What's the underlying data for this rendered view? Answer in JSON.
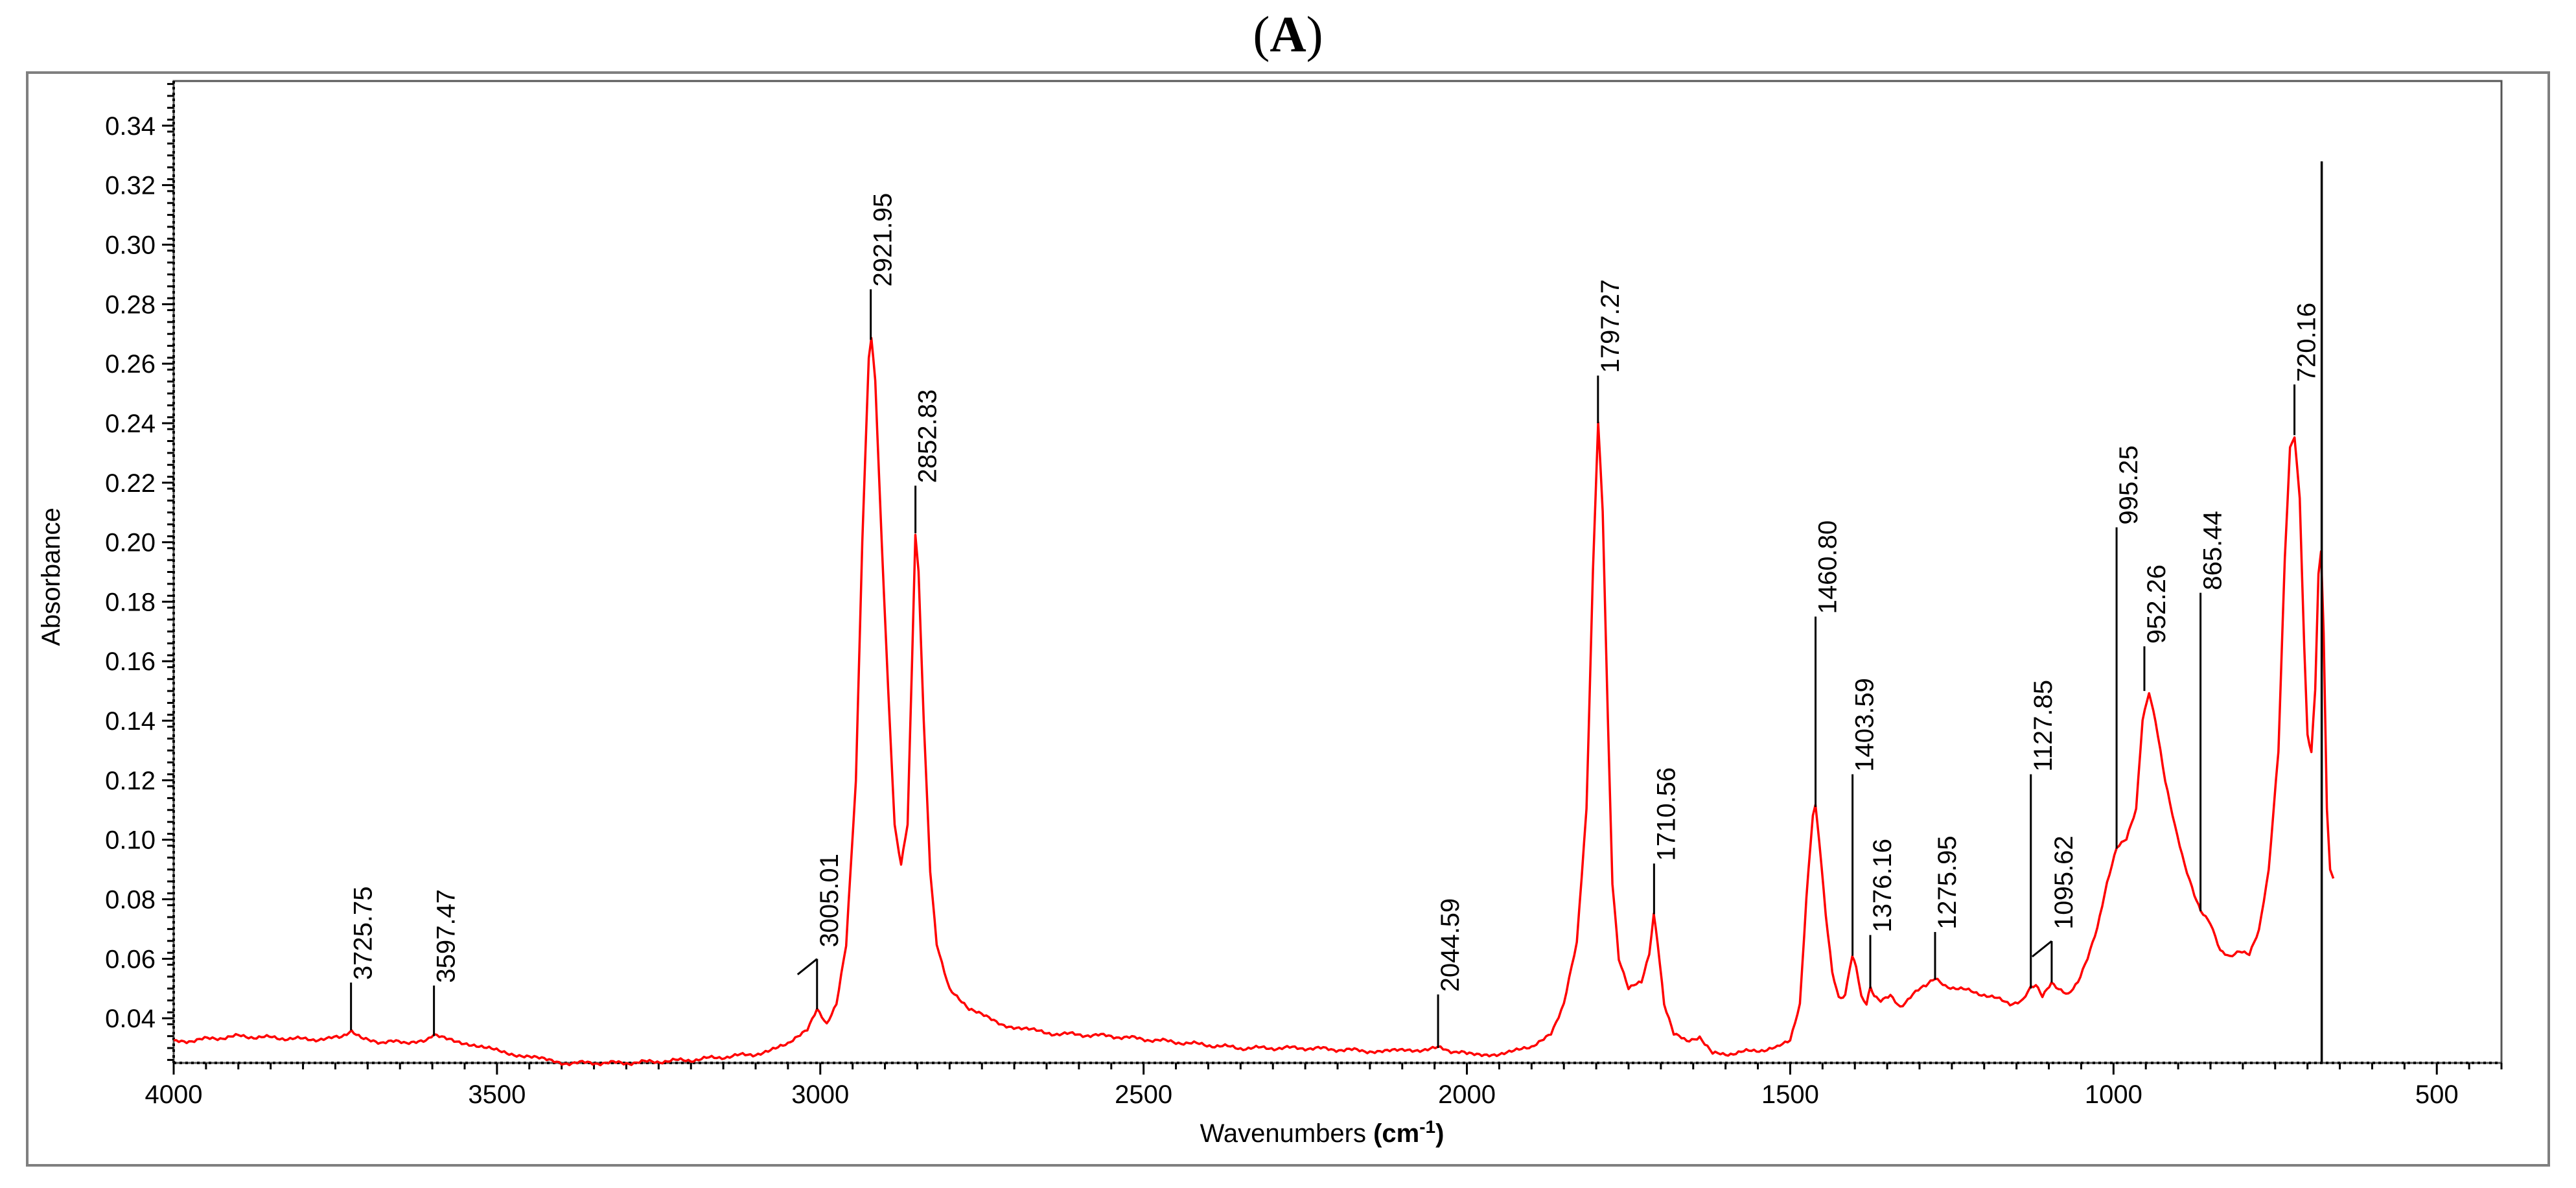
{
  "figure": {
    "panel_label": "A"
  },
  "chart_data": {
    "type": "line",
    "title": "(A)",
    "xlabel": "Wavenumbers (cm⁻¹)",
    "xlabel_parts": {
      "text": "Wavenumbers ",
      "unit_base": "cm",
      "unit_exp": "-1"
    },
    "ylabel": "Absorbance",
    "xlim": [
      4000,
      400
    ],
    "ylim": [
      0.025,
      0.355
    ],
    "x_ticks": [
      4000,
      3500,
      3000,
      2500,
      2000,
      1500,
      1000,
      500
    ],
    "y_ticks": [
      0.04,
      0.06,
      0.08,
      0.1,
      0.12,
      0.14,
      0.16,
      0.18,
      0.2,
      0.22,
      0.24,
      0.26,
      0.28,
      0.3,
      0.32,
      0.34
    ],
    "y_tick_labels": [
      "0.04",
      "0.06",
      "0.08",
      "0.10",
      "0.12",
      "0.14",
      "0.16",
      "0.18",
      "0.20",
      "0.22",
      "0.24",
      "0.26",
      "0.28",
      "0.30",
      "0.32",
      "0.34"
    ],
    "line_color": "#ff0000",
    "series": [
      {
        "name": "Absorbance spectrum",
        "points": [
          [
            4000,
            0.032
          ],
          [
            3900,
            0.034
          ],
          [
            3800,
            0.033
          ],
          [
            3760,
            0.033
          ],
          [
            3740,
            0.034
          ],
          [
            3725,
            0.036
          ],
          [
            3710,
            0.034
          ],
          [
            3680,
            0.032
          ],
          [
            3640,
            0.032
          ],
          [
            3610,
            0.033
          ],
          [
            3597,
            0.034
          ],
          [
            3570,
            0.033
          ],
          [
            3520,
            0.03
          ],
          [
            3450,
            0.027
          ],
          [
            3400,
            0.025
          ],
          [
            3300,
            0.025
          ],
          [
            3200,
            0.026
          ],
          [
            3100,
            0.028
          ],
          [
            3050,
            0.031
          ],
          [
            3020,
            0.036
          ],
          [
            3005,
            0.043
          ],
          [
            2990,
            0.038
          ],
          [
            2975,
            0.045
          ],
          [
            2960,
            0.065
          ],
          [
            2945,
            0.12
          ],
          [
            2935,
            0.2
          ],
          [
            2925,
            0.262
          ],
          [
            2921,
            0.268
          ],
          [
            2915,
            0.255
          ],
          [
            2905,
            0.2
          ],
          [
            2895,
            0.15
          ],
          [
            2885,
            0.105
          ],
          [
            2875,
            0.092
          ],
          [
            2865,
            0.105
          ],
          [
            2858,
            0.16
          ],
          [
            2853,
            0.203
          ],
          [
            2848,
            0.19
          ],
          [
            2840,
            0.14
          ],
          [
            2830,
            0.09
          ],
          [
            2820,
            0.065
          ],
          [
            2800,
            0.05
          ],
          [
            2770,
            0.043
          ],
          [
            2720,
            0.038
          ],
          [
            2650,
            0.035
          ],
          [
            2550,
            0.034
          ],
          [
            2450,
            0.032
          ],
          [
            2350,
            0.03
          ],
          [
            2250,
            0.03
          ],
          [
            2150,
            0.029
          ],
          [
            2100,
            0.029
          ],
          [
            2045,
            0.03
          ],
          [
            2000,
            0.028
          ],
          [
            1950,
            0.028
          ],
          [
            1900,
            0.03
          ],
          [
            1870,
            0.035
          ],
          [
            1850,
            0.045
          ],
          [
            1830,
            0.065
          ],
          [
            1815,
            0.11
          ],
          [
            1805,
            0.19
          ],
          [
            1797,
            0.24
          ],
          [
            1790,
            0.21
          ],
          [
            1782,
            0.14
          ],
          [
            1775,
            0.085
          ],
          [
            1765,
            0.06
          ],
          [
            1750,
            0.05
          ],
          [
            1730,
            0.052
          ],
          [
            1718,
            0.062
          ],
          [
            1711,
            0.075
          ],
          [
            1705,
            0.065
          ],
          [
            1695,
            0.045
          ],
          [
            1680,
            0.035
          ],
          [
            1660,
            0.032
          ],
          [
            1640,
            0.034
          ],
          [
            1620,
            0.028
          ],
          [
            1600,
            0.028
          ],
          [
            1560,
            0.029
          ],
          [
            1520,
            0.03
          ],
          [
            1500,
            0.033
          ],
          [
            1485,
            0.045
          ],
          [
            1475,
            0.08
          ],
          [
            1465,
            0.108
          ],
          [
            1461,
            0.111
          ],
          [
            1455,
            0.1
          ],
          [
            1445,
            0.075
          ],
          [
            1435,
            0.055
          ],
          [
            1425,
            0.047
          ],
          [
            1415,
            0.048
          ],
          [
            1408,
            0.057
          ],
          [
            1404,
            0.061
          ],
          [
            1398,
            0.057
          ],
          [
            1390,
            0.047
          ],
          [
            1382,
            0.045
          ],
          [
            1376,
            0.05
          ],
          [
            1370,
            0.048
          ],
          [
            1360,
            0.046
          ],
          [
            1345,
            0.048
          ],
          [
            1330,
            0.044
          ],
          [
            1310,
            0.048
          ],
          [
            1290,
            0.051
          ],
          [
            1276,
            0.053
          ],
          [
            1260,
            0.051
          ],
          [
            1240,
            0.05
          ],
          [
            1200,
            0.048
          ],
          [
            1160,
            0.045
          ],
          [
            1140,
            0.046
          ],
          [
            1128,
            0.05
          ],
          [
            1120,
            0.051
          ],
          [
            1110,
            0.047
          ],
          [
            1096,
            0.052
          ],
          [
            1085,
            0.05
          ],
          [
            1070,
            0.048
          ],
          [
            1055,
            0.052
          ],
          [
            1040,
            0.06
          ],
          [
            1025,
            0.07
          ],
          [
            1010,
            0.085
          ],
          [
            995,
            0.097
          ],
          [
            980,
            0.1
          ],
          [
            965,
            0.11
          ],
          [
            955,
            0.14
          ],
          [
            945,
            0.15
          ],
          [
            935,
            0.14
          ],
          [
            920,
            0.12
          ],
          [
            905,
            0.105
          ],
          [
            890,
            0.092
          ],
          [
            875,
            0.082
          ],
          [
            865,
            0.076
          ],
          [
            850,
            0.072
          ],
          [
            835,
            0.063
          ],
          [
            820,
            0.061
          ],
          [
            805,
            0.063
          ],
          [
            790,
            0.062
          ],
          [
            775,
            0.07
          ],
          [
            760,
            0.09
          ],
          [
            745,
            0.13
          ],
          [
            735,
            0.195
          ],
          [
            727,
            0.232
          ],
          [
            720,
            0.236
          ],
          [
            712,
            0.215
          ],
          [
            705,
            0.165
          ],
          [
            700,
            0.135
          ],
          [
            694,
            0.13
          ],
          [
            688,
            0.15
          ],
          [
            683,
            0.19
          ],
          [
            679,
            0.197
          ],
          [
            675,
            0.17
          ],
          [
            670,
            0.11
          ],
          [
            665,
            0.09
          ],
          [
            660,
            0.087
          ]
        ]
      }
    ],
    "peak_labels": [
      {
        "x": 3725.75,
        "label": "3725.75",
        "line_top": 0.052,
        "line_bottom": 0.036,
        "leader": "vertical"
      },
      {
        "x": 3597.47,
        "label": "3597.47",
        "line_top": 0.051,
        "line_bottom": 0.034,
        "leader": "vertical"
      },
      {
        "x": 3005.01,
        "label": "3005.01",
        "line_top": 0.063,
        "line_bottom": 0.043,
        "leader": "slanted"
      },
      {
        "x": 2921.95,
        "label": "2921.95",
        "line_top": 0.285,
        "line_bottom": 0.268,
        "leader": "vertical"
      },
      {
        "x": 2852.83,
        "label": "2852.83",
        "line_top": 0.219,
        "line_bottom": 0.203,
        "leader": "vertical"
      },
      {
        "x": 2044.59,
        "label": "2044.59",
        "line_top": 0.048,
        "line_bottom": 0.03,
        "leader": "vertical"
      },
      {
        "x": 1797.27,
        "label": "1797.27",
        "line_top": 0.256,
        "line_bottom": 0.24,
        "leader": "vertical"
      },
      {
        "x": 1710.56,
        "label": "1710.56",
        "line_top": 0.092,
        "line_bottom": 0.075,
        "leader": "vertical"
      },
      {
        "x": 1460.8,
        "label": "1460.80",
        "line_top": 0.175,
        "line_bottom": 0.111,
        "leader": "vertical"
      },
      {
        "x": 1403.59,
        "label": "1403.59",
        "line_top": 0.122,
        "line_bottom": 0.061,
        "leader": "vertical"
      },
      {
        "x": 1376.16,
        "label": "1376.16",
        "line_top": 0.068,
        "line_bottom": 0.05,
        "leader": "vertical"
      },
      {
        "x": 1275.95,
        "label": "1275.95",
        "line_top": 0.069,
        "line_bottom": 0.053,
        "leader": "vertical"
      },
      {
        "x": 1127.85,
        "label": "1127.85",
        "line_top": 0.122,
        "line_bottom": 0.05,
        "leader": "vertical"
      },
      {
        "x": 1095.62,
        "label": "1095.62",
        "line_top": 0.069,
        "line_bottom": 0.052,
        "leader": "slanted"
      },
      {
        "x": 995.25,
        "label": "995.25",
        "line_top": 0.205,
        "line_bottom": 0.097,
        "leader": "vertical"
      },
      {
        "x": 952.26,
        "label": "952.26",
        "line_top": 0.165,
        "line_bottom": 0.15,
        "leader": "vertical"
      },
      {
        "x": 865.44,
        "label": "865.44",
        "line_top": 0.183,
        "line_bottom": 0.076,
        "leader": "vertical"
      },
      {
        "x": 720.16,
        "label": "720.16",
        "line_top": 0.253,
        "line_bottom": 0.236,
        "leader": "vertical"
      }
    ],
    "marker_line": {
      "x": 678,
      "y_top": 0.328,
      "y_bottom": 0.025
    },
    "grid": false,
    "legend": "none"
  }
}
